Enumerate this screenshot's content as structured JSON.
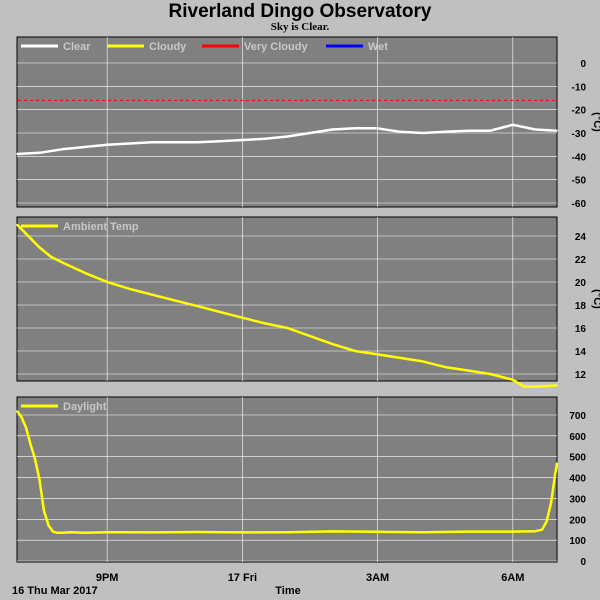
{
  "title": "Riverland Dingo Observatory",
  "subtitle": "Sky is Clear.",
  "xlabel": "Time",
  "date_label": "16 Thu Mar 2017",
  "x_ticks": [
    {
      "t": 21,
      "label": "9PM"
    },
    {
      "t": 24,
      "label": "17 Fri"
    },
    {
      "t": 27,
      "label": "3AM"
    },
    {
      "t": 30,
      "label": "6AM"
    }
  ],
  "x_range": [
    19,
    30.98
  ],
  "colors": {
    "panel": "#808080",
    "grid": "#ffffff",
    "clear": "#ffffff",
    "cloudy": "#ffff00",
    "very_cloudy": "#ff0000",
    "wet": "#0000ff"
  },
  "chart_data": [
    {
      "type": "line",
      "ylabel": "(°C)",
      "ylim": [
        -60,
        5
      ],
      "yticks": [
        0,
        -10,
        -20,
        -30,
        -40,
        -50,
        -60
      ],
      "legend": [
        {
          "name": "Clear",
          "color": "#ffffff"
        },
        {
          "name": "Cloudy",
          "color": "#ffff00"
        },
        {
          "name": "Very Cloudy",
          "color": "#ff0000"
        },
        {
          "name": "Wet",
          "color": "#0000ff"
        }
      ],
      "threshold": {
        "value": -16,
        "color": "#ff0000",
        "style": "dashed"
      },
      "series": [
        {
          "name": "Clear",
          "color": "#ffffff",
          "x": [
            19.0,
            19.5,
            20.0,
            20.5,
            21.0,
            21.5,
            22.0,
            22.5,
            23.0,
            23.5,
            24.0,
            24.5,
            25.0,
            25.5,
            26.0,
            26.5,
            27.0,
            27.5,
            28.0,
            28.5,
            29.0,
            29.5,
            30.0,
            30.5,
            30.98
          ],
          "y": [
            -39,
            -38.5,
            -37,
            -36,
            -35,
            -34.5,
            -34,
            -34,
            -34,
            -33.5,
            -33,
            -32.5,
            -31.5,
            -30,
            -28.5,
            -28,
            -28,
            -29.5,
            -30,
            -29.5,
            -29,
            -29,
            -26.5,
            -28.5,
            -29
          ]
        }
      ]
    },
    {
      "type": "line",
      "ylabel": "(°C)",
      "ylim": [
        10.2,
        26
      ],
      "yticks": [
        24,
        22,
        20,
        18,
        16,
        14,
        12
      ],
      "legend": [
        {
          "name": "Ambient Temp",
          "color": "#ffff00"
        }
      ],
      "series": [
        {
          "name": "Ambient Temp",
          "color": "#ffff00",
          "x": [
            19.0,
            19.25,
            19.5,
            19.75,
            20.0,
            20.5,
            21.0,
            21.5,
            22.0,
            22.5,
            23.0,
            23.5,
            24.0,
            24.5,
            25.0,
            25.5,
            26.0,
            26.5,
            27.0,
            27.5,
            28.0,
            28.5,
            29.0,
            29.5,
            30.0,
            30.25,
            30.5,
            30.98
          ],
          "y": [
            25.0,
            24.0,
            23.0,
            22.2,
            21.7,
            20.8,
            20.0,
            19.4,
            18.9,
            18.4,
            17.9,
            17.4,
            16.9,
            16.4,
            16.0,
            15.3,
            14.6,
            14.0,
            13.7,
            13.4,
            13.1,
            12.6,
            12.3,
            12.0,
            11.5,
            10.9,
            10.9,
            11.0
          ]
        }
      ]
    },
    {
      "type": "line",
      "ylabel": "",
      "ylim": [
        0,
        780
      ],
      "yticks": [
        700,
        600,
        500,
        400,
        300,
        200,
        100,
        0
      ],
      "legend": [
        {
          "name": "Daylight",
          "color": "#ffff00"
        }
      ],
      "series": [
        {
          "name": "Daylight",
          "color": "#ffff00",
          "x": [
            19.0,
            19.1,
            19.2,
            19.3,
            19.4,
            19.5,
            19.6,
            19.7,
            19.8,
            19.9,
            20.0,
            20.2,
            20.5,
            21.0,
            22.0,
            23.0,
            24.0,
            25.0,
            26.0,
            27.0,
            28.0,
            29.0,
            30.0,
            30.5,
            30.65,
            30.75,
            30.85,
            30.93,
            30.98
          ],
          "y": [
            720,
            690,
            640,
            560,
            490,
            390,
            240,
            170,
            140,
            135,
            135,
            138,
            135,
            138,
            137,
            139,
            137,
            138,
            142,
            140,
            138,
            141,
            141,
            143,
            150,
            190,
            280,
            400,
            470
          ]
        }
      ]
    }
  ]
}
